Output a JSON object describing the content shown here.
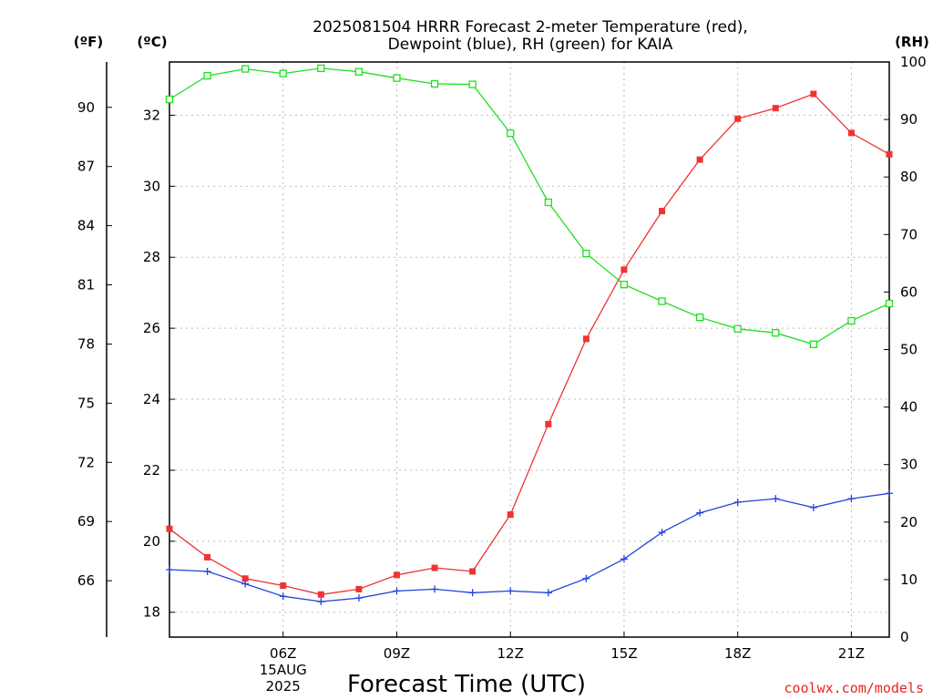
{
  "chart_data": {
    "type": "line",
    "title": [
      "2025081504 HRRR Forecast 2-meter Temperature (red),",
      "Dewpoint (blue), RH (green) for KAIA"
    ],
    "xlabel": "Forecast Time (UTC)",
    "credit": "coolwx.com/models",
    "left_units_f": "(ºF)",
    "left_units_c": "(ºC)",
    "right_units": "(RH)",
    "x_hours": [
      3,
      4,
      5,
      6,
      7,
      8,
      9,
      10,
      11,
      12,
      13,
      14,
      15,
      16,
      17,
      18,
      19,
      20,
      21,
      22
    ],
    "xlim": [
      3,
      22
    ],
    "x_ticks": [
      {
        "hour": 6,
        "lines": [
          "06Z",
          "15AUG",
          "2025"
        ]
      },
      {
        "hour": 9,
        "lines": [
          "09Z"
        ]
      },
      {
        "hour": 12,
        "lines": [
          "12Z"
        ]
      },
      {
        "hour": 15,
        "lines": [
          "15Z"
        ]
      },
      {
        "hour": 18,
        "lines": [
          "18Z"
        ]
      },
      {
        "hour": 21,
        "lines": [
          "21Z"
        ]
      }
    ],
    "celsius_axis": {
      "ylim": [
        17.3,
        33.5
      ],
      "ticks": [
        "18",
        "20",
        "22",
        "24",
        "26",
        "28",
        "30",
        "32"
      ]
    },
    "fahrenheit_ticks": [
      "66",
      "69",
      "72",
      "75",
      "78",
      "81",
      "84",
      "87",
      "90"
    ],
    "rh_axis": {
      "ylim": [
        0,
        100
      ],
      "ticks": [
        "0",
        "10",
        "20",
        "30",
        "40",
        "50",
        "60",
        "70",
        "80",
        "90",
        "100"
      ]
    },
    "series": [
      {
        "name": "Temperature",
        "axis": "C",
        "color": "#ee3333",
        "marker": "filled-square",
        "values": [
          20.35,
          19.55,
          18.95,
          18.75,
          18.5,
          18.65,
          19.05,
          19.25,
          19.15,
          20.75,
          23.3,
          25.7,
          27.65,
          29.3,
          30.75,
          31.9,
          32.2,
          32.6,
          31.5,
          30.9
        ]
      },
      {
        "name": "Dewpoint",
        "axis": "C",
        "color": "#2244dd",
        "marker": "plus",
        "values": [
          19.2,
          19.15,
          18.8,
          18.45,
          18.3,
          18.4,
          18.6,
          18.65,
          18.55,
          18.6,
          18.55,
          18.95,
          19.5,
          20.25,
          20.8,
          21.1,
          21.2,
          20.95,
          21.2,
          21.35
        ]
      },
      {
        "name": "RH",
        "axis": "RH",
        "color": "#22dd22",
        "marker": "open-square",
        "values": [
          93.5,
          97.6,
          98.8,
          98.0,
          98.9,
          98.3,
          97.2,
          96.2,
          96.1,
          87.6,
          75.6,
          66.7,
          61.3,
          58.4,
          55.6,
          53.6,
          52.9,
          50.9,
          55.0,
          58.0
        ]
      }
    ],
    "grid": true
  }
}
